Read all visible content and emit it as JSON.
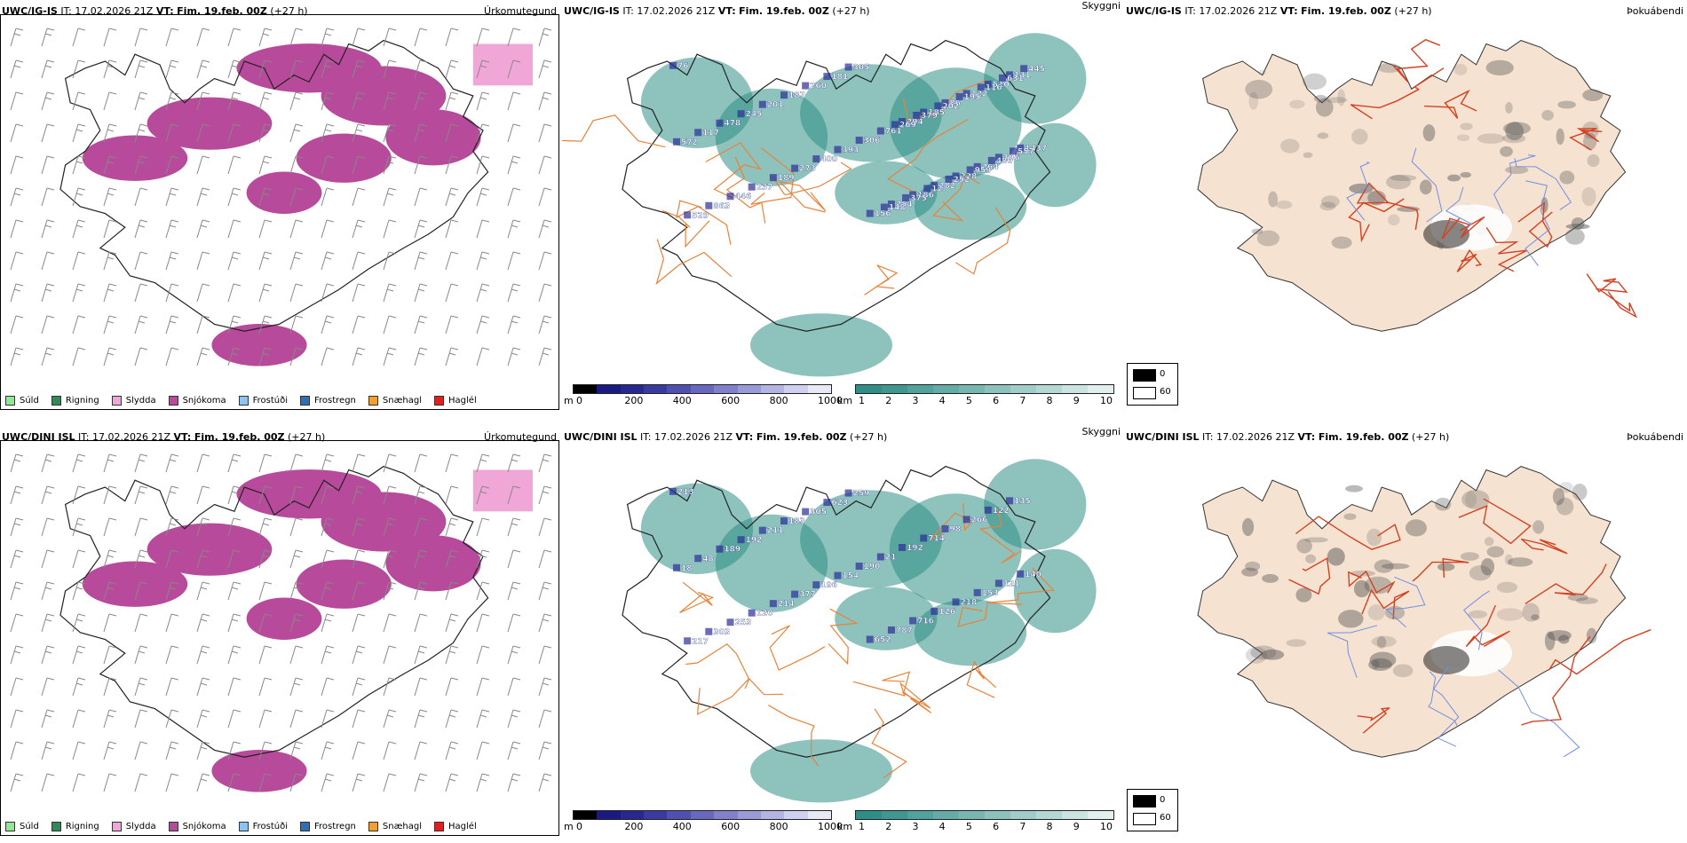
{
  "colors": {
    "snow": "#b84a9c",
    "snow_light": "#f0a6d6",
    "terrain_beige": "#f6e2d0",
    "roads": "#e8833a",
    "red_roads": "#d44020",
    "water_blue": "#6f8ee8",
    "cloud_teal": "#2f8f86"
  },
  "rows": [
    {
      "precip": {
        "model": "UWC/IG-IS",
        "it": "IT: 17.02.2026 21Z",
        "vt_label": "VT:",
        "vt": "Fim. 19.feb. 00Z",
        "lead": "(+27 h)",
        "title": "Úrkomutegund"
      },
      "cloud": {
        "model": "UWC/IG-IS",
        "it": "IT: 17.02.2026 21Z",
        "vt_label": "VT:",
        "vt": "Fim. 19.feb. 00Z",
        "lead": "(+27 h)",
        "title": "Skyggni",
        "labels": [
          "76",
          "1437",
          "131",
          "196",
          "510",
          "264",
          "122",
          "228",
          "86",
          "282",
          "185",
          "186",
          "294",
          "254",
          "761",
          "156",
          "306",
          "305",
          "393",
          "181",
          "400",
          "260",
          "273",
          "187",
          "189",
          "201",
          "237",
          "245",
          "446",
          "478",
          "863",
          "117",
          "529",
          "572",
          "445",
          "557",
          "631",
          "480",
          "116",
          "959",
          "195",
          "252",
          "202",
          "12",
          "379",
          "375",
          "269",
          "148"
        ]
      },
      "dark": {
        "model": "UWC/IG-IS",
        "it": "IT: 17.02.2026 21Z",
        "vt_label": "VT:",
        "vt": "Fim. 19.feb. 00Z",
        "lead": "(+27 h)",
        "title": "Þokuábendi"
      }
    },
    {
      "precip": {
        "model": "UWC/DINI ISL",
        "it": "IT: 17.02.2026 21Z",
        "vt_label": "VT:",
        "vt": "Fim. 19.feb. 00Z",
        "lead": "(+27 h)",
        "title": "Úrkomutegund"
      },
      "cloud": {
        "model": "UWC/DINI ISL",
        "it": "IT: 17.02.2026 21Z",
        "vt_label": "VT:",
        "vt": "Fim. 19.feb. 00Z",
        "lead": "(+27 h)",
        "title": "Skyggni",
        "labels": [
          "213",
          "140",
          "135",
          "121",
          "122",
          "153",
          "266",
          "218",
          "98",
          "126",
          "714",
          "716",
          "192",
          "787",
          "21",
          "652",
          "190",
          "259",
          "154",
          "623",
          "196",
          "305",
          "377",
          "183",
          "214",
          "211",
          "120",
          "192",
          "253",
          "189",
          "303",
          "48",
          "217",
          "18"
        ]
      },
      "dark": {
        "model": "UWC/DINI ISL",
        "it": "IT: 17.02.2026 21Z",
        "vt_label": "VT:",
        "vt": "Fim. 19.feb. 00Z",
        "lead": "(+27 h)",
        "title": "Þokuábendi"
      }
    }
  ],
  "precip_legend": [
    {
      "label": "Súld",
      "color": "#90e890"
    },
    {
      "label": "Rigning",
      "color": "#2e8b57"
    },
    {
      "label": "Slydda",
      "color": "#f0a6d6"
    },
    {
      "label": "Snjókoma",
      "color": "#b84a9c"
    },
    {
      "label": "Frostúði",
      "color": "#8ec2ef"
    },
    {
      "label": "Frostregn",
      "color": "#2f6fb8"
    },
    {
      "label": "Snæhagl",
      "color": "#f0a030"
    },
    {
      "label": "Haglél",
      "color": "#e02020"
    }
  ],
  "cbar_m": {
    "unit": "m",
    "ticks": [
      "0",
      "200",
      "400",
      "600",
      "800",
      "1000"
    ],
    "colors": [
      "#000000",
      "#1a1a80",
      "#282890",
      "#3a3aa0",
      "#5050b0",
      "#6868c0",
      "#8080cc",
      "#9a9ad8",
      "#b4b4e4",
      "#cfcfef",
      "#e8e8f7"
    ]
  },
  "cbar_km": {
    "unit": "km",
    "ticks": [
      "1",
      "2",
      "3",
      "4",
      "5",
      "6",
      "7",
      "8",
      "9",
      "10"
    ],
    "colors": [
      "#2f8f86",
      "#3f9890",
      "#51a29a",
      "#64aca5",
      "#78b7b0",
      "#8cc2bc",
      "#a1cdc8",
      "#b6d8d4",
      "#cce4e1",
      "#e2efee"
    ]
  },
  "dark_legend": {
    "v0": "0",
    "v1": "60"
  }
}
